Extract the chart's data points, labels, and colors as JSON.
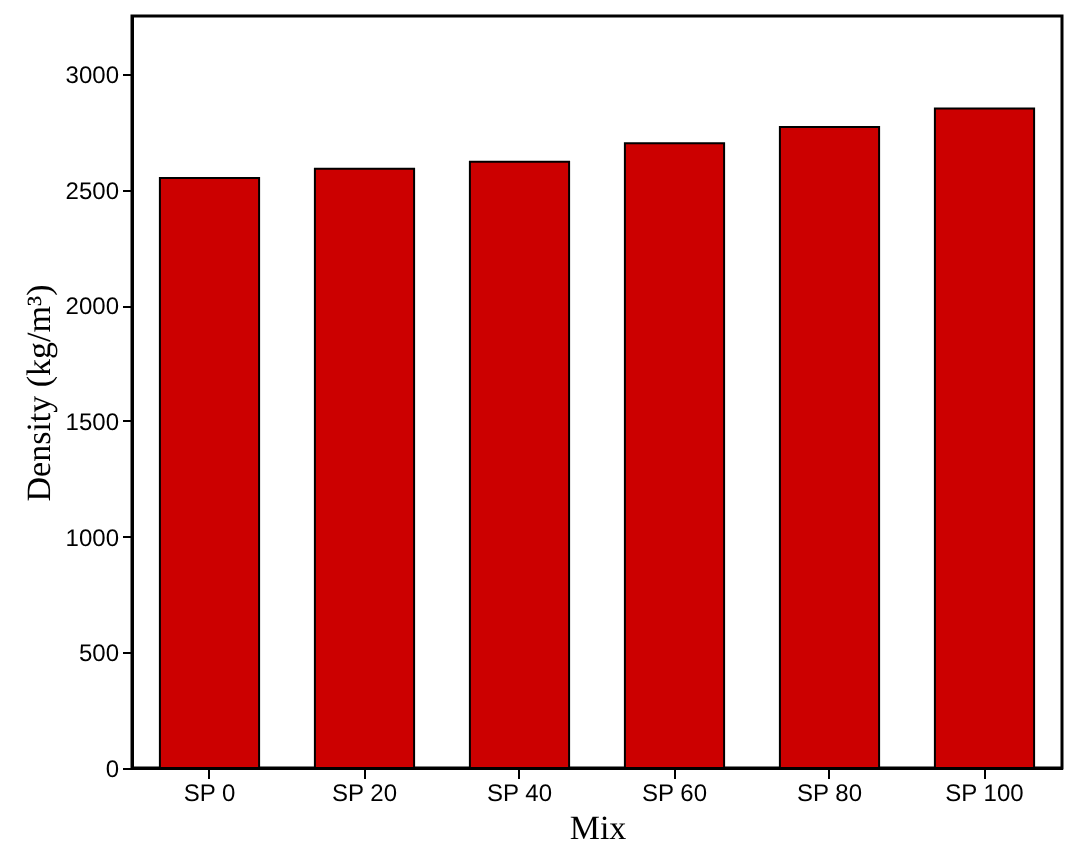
{
  "chart_data": {
    "type": "bar",
    "xlabel": "Mix",
    "ylabel": "Density (kg/m³)",
    "categories": [
      "SP 0",
      "SP 20",
      "SP 40",
      "SP 60",
      "SP 80",
      "SP 100"
    ],
    "values": [
      2550,
      2590,
      2620,
      2700,
      2770,
      2850
    ],
    "color": "#cc0000",
    "ylim": [
      0,
      3250
    ],
    "yticks": [
      0,
      500,
      1000,
      1500,
      2000,
      2500,
      3000
    ],
    "grid": false
  }
}
